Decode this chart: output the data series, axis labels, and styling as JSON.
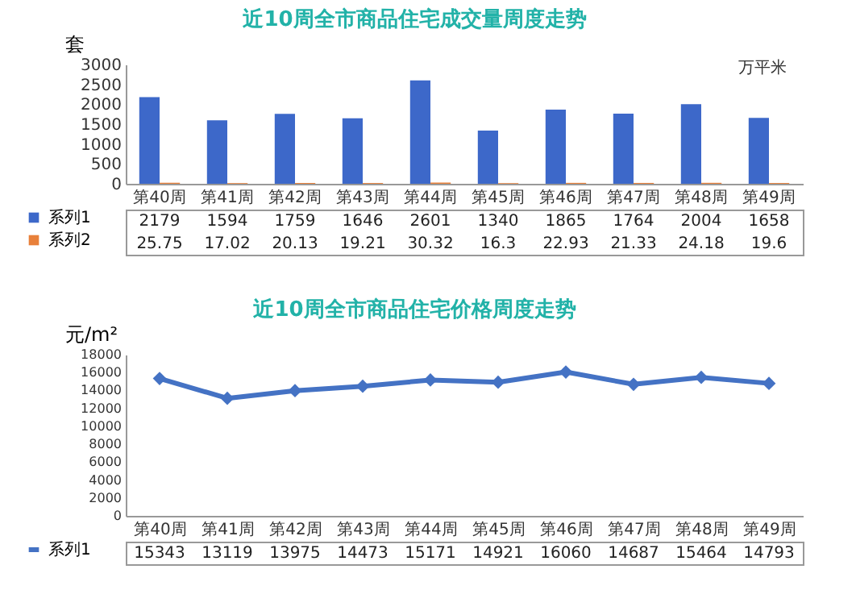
{
  "chart_data": [
    {
      "type": "bar",
      "title": "近10周全市商品住宅成交量周度走势",
      "ylabel": "套",
      "annotations": [
        "万平米"
      ],
      "categories": [
        "第40周",
        "第41周",
        "第42周",
        "第43周",
        "第44周",
        "第45周",
        "第46周",
        "第47周",
        "第48周",
        "第49周"
      ],
      "series": [
        {
          "name": "系列1",
          "color": "#3d68c9",
          "values": [
            2179,
            1594,
            1759,
            1646,
            2601,
            1340,
            1865,
            1764,
            2004,
            1658
          ]
        },
        {
          "name": "系列2",
          "color": "#e8803a",
          "values": [
            25.75,
            17.02,
            20.13,
            19.21,
            30.32,
            16.3,
            22.93,
            21.33,
            24.18,
            19.6
          ]
        }
      ],
      "ylim": [
        0,
        3000
      ],
      "yticks": [
        0,
        500,
        1000,
        1500,
        2000,
        2500,
        3000
      ],
      "data_labels": true,
      "legend": "bottom left"
    },
    {
      "type": "line",
      "title": "近10周全市商品住宅价格周度走势",
      "ylabel": "元/m²",
      "categories": [
        "第40周",
        "第41周",
        "第42周",
        "第43周",
        "第44周",
        "第45周",
        "第46周",
        "第47周",
        "第48周",
        "第49周"
      ],
      "series": [
        {
          "name": "系列1",
          "color": "#4472c4",
          "values": [
            15343,
            13119,
            13975,
            14473,
            15171,
            14921,
            16060,
            14687,
            15464,
            14793
          ]
        }
      ],
      "ylim": [
        0,
        18000
      ],
      "yticks": [
        0,
        2000,
        4000,
        6000,
        8000,
        10000,
        12000,
        14000,
        16000,
        18000
      ],
      "data_labels": true,
      "legend": "bottom left",
      "marker": "diamond",
      "line_style": "solid"
    }
  ]
}
